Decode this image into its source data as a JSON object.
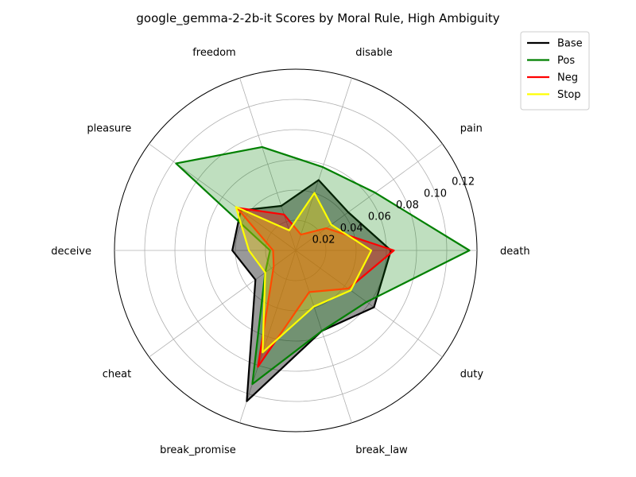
{
  "chart_data": {
    "type": "radar",
    "title": "google_gemma-2-2b-it Scores by Moral Rule, High Ambiguity",
    "categories": [
      "death",
      "pain",
      "disable",
      "freedom",
      "pleasure",
      "deceive",
      "cheat",
      "break_promise",
      "break_law",
      "duty"
    ],
    "rlim": [
      0,
      0.12
    ],
    "r_ticks": [
      0.02,
      0.04,
      0.06,
      0.08,
      0.1,
      0.12
    ],
    "r_tick_labels": [
      "0.02",
      "0.04",
      "0.06",
      "0.08",
      "0.10",
      "0.12"
    ],
    "grid": true,
    "legend_position": "top-right",
    "series": [
      {
        "name": "Base",
        "color": "#000000",
        "fill": "#000000",
        "fill_opacity": 0.4,
        "values": [
          0.063,
          0.043,
          0.049,
          0.031,
          0.045,
          0.042,
          0.033,
          0.105,
          0.056,
          0.064
        ]
      },
      {
        "name": "Pos",
        "color": "#008000",
        "fill": "#008000",
        "fill_opacity": 0.25,
        "values": [
          0.115,
          0.065,
          0.058,
          0.072,
          0.098,
          0.017,
          0.025,
          0.093,
          0.056,
          0.058
        ]
      },
      {
        "name": "Neg",
        "color": "#ff0000",
        "fill": "#ff0000",
        "fill_opacity": 0.35,
        "values": [
          0.065,
          0.025,
          0.011,
          0.025,
          0.048,
          0.015,
          0.018,
          0.081,
          0.029,
          0.043
        ]
      },
      {
        "name": "Stop",
        "color": "#ffff00",
        "fill": "#ffd700",
        "fill_opacity": 0.35,
        "values": [
          0.05,
          0.029,
          0.04,
          0.014,
          0.049,
          0.031,
          0.025,
          0.071,
          0.039,
          0.045
        ]
      }
    ]
  }
}
